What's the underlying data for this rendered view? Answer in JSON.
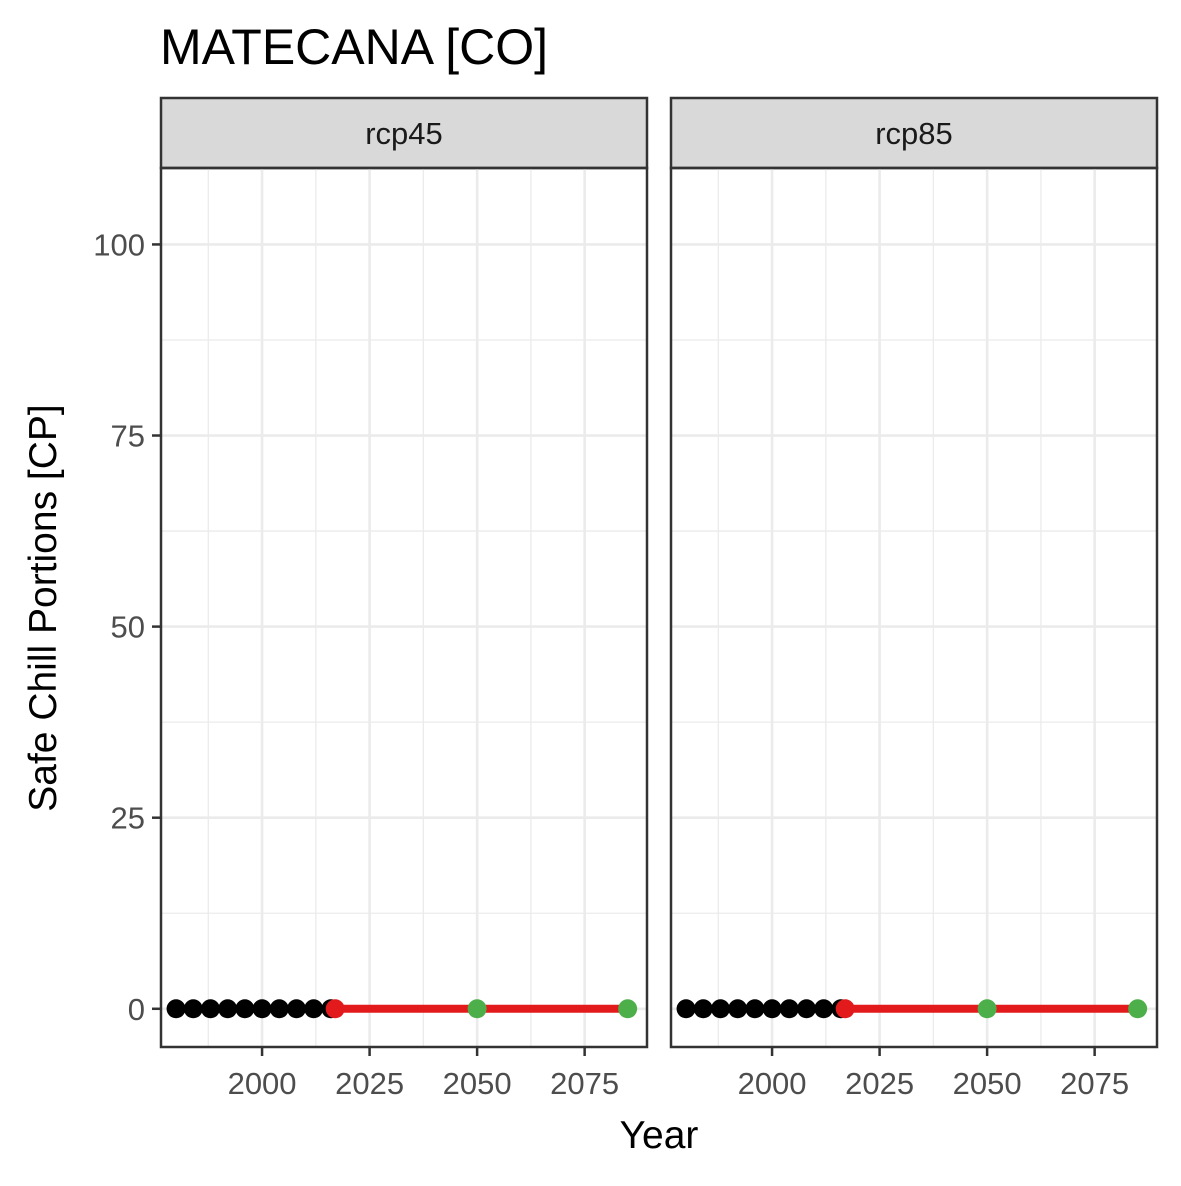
{
  "chart_data": {
    "type": "line",
    "title": "MATECANA [CO]",
    "xlabel": "Year",
    "ylabel": "Safe Chill Portions [CP]",
    "xlim": [
      1976.5,
      2089.5
    ],
    "ylim": [
      -5,
      110
    ],
    "x_ticks": [
      2000,
      2025,
      2050,
      2075
    ],
    "y_ticks": [
      0,
      25,
      50,
      75,
      100
    ],
    "grid": true,
    "legend": "none",
    "colors": {
      "observed": "#000000",
      "scenario_line": "#e31a1c",
      "scenario_start": "#e31a1c",
      "future": "#4daf4a",
      "strip_bg": "#d9d9d9",
      "panel_border": "#333333",
      "grid": "#ebebeb"
    },
    "panels": [
      {
        "label": "rcp45",
        "observed": {
          "x": [
            1980,
            1984,
            1988,
            1992,
            1996,
            2000,
            2004,
            2008,
            2012,
            2016
          ],
          "y": [
            0,
            0,
            0,
            0,
            0,
            0,
            0,
            0,
            0,
            0
          ]
        },
        "scenario_start": {
          "x": 2017,
          "y": 0
        },
        "future": {
          "x": [
            2050,
            2085
          ],
          "y": [
            0,
            0
          ]
        },
        "trend": {
          "x": [
            2017,
            2050,
            2085
          ],
          "y": [
            0,
            0,
            0
          ]
        }
      },
      {
        "label": "rcp85",
        "observed": {
          "x": [
            1980,
            1984,
            1988,
            1992,
            1996,
            2000,
            2004,
            2008,
            2012,
            2016
          ],
          "y": [
            0,
            0,
            0,
            0,
            0,
            0,
            0,
            0,
            0,
            0
          ]
        },
        "scenario_start": {
          "x": 2017,
          "y": 0
        },
        "future": {
          "x": [
            2050,
            2085
          ],
          "y": [
            0,
            0
          ]
        },
        "trend": {
          "x": [
            2017,
            2050,
            2085
          ],
          "y": [
            0,
            0,
            0
          ]
        }
      }
    ]
  }
}
